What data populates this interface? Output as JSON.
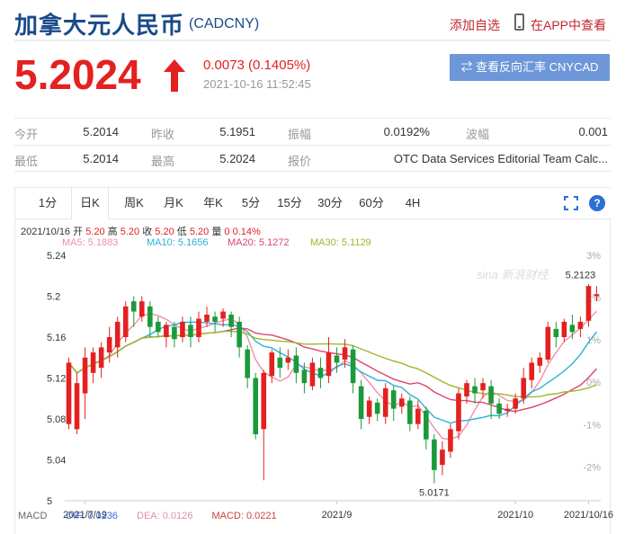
{
  "header": {
    "title": "加拿大元人民币",
    "code": "(CADCNY)",
    "add_favorite": "添加自选",
    "view_in_app": "在APP中查看"
  },
  "quote": {
    "price": "5.2024",
    "direction": "up",
    "change": "0.0073 (0.1405%)",
    "timestamp": "2021-10-16 11:52:45",
    "reverse_button": "⇄ 查看反向汇率 CNYCAD"
  },
  "stats": {
    "row1": [
      {
        "label": "今开",
        "value": "5.2014"
      },
      {
        "label": "昨收",
        "value": "5.1951"
      },
      {
        "label": "振幅",
        "value": "0.0192%"
      },
      {
        "label": "波幅",
        "value": "0.001"
      }
    ],
    "row2": [
      {
        "label": "最低",
        "value": "5.2014"
      },
      {
        "label": "最高",
        "value": "5.2024"
      },
      {
        "label": "报价",
        "value": "OTC Data Services Editorial Team Calc..."
      }
    ]
  },
  "tabs": [
    "1分",
    "日K",
    "周K",
    "月K",
    "年K",
    "5分",
    "15分",
    "30分",
    "60分",
    "4H"
  ],
  "active_tab": "日K",
  "ohlc_legend": {
    "date": "2021/10/16",
    "open_label": "开",
    "open": "5.20",
    "high_label": "高",
    "high": "5.20",
    "close_label": "收",
    "close": "5.20",
    "low_label": "低",
    "low": "5.20",
    "vol_label": "量",
    "vol": "0",
    "pct": "0.14%"
  },
  "ma_legend": [
    {
      "label": "MA5: 5.1883",
      "color": "#f08fa8"
    },
    {
      "label": "MA10: 5.1656",
      "color": "#2ab0d8"
    },
    {
      "label": "MA20: 5.1272",
      "color": "#e0436b"
    },
    {
      "label": "MA30: 5.1129",
      "color": "#9cb82a"
    }
  ],
  "macd": {
    "name": "MACD",
    "dif": "DIF: 0.0236",
    "dif_color": "#3b6fd6",
    "dea": "DEA: 0.0126",
    "dea_color": "#e08fa8",
    "macd": "MACD: 0.0221",
    "macd_color": "#d04040"
  },
  "watermark": "sina 新浪财经",
  "colors": {
    "up": "#e42020",
    "down": "#1a9a3a",
    "accent": "#1a4a8a"
  },
  "chart_data": {
    "type": "candlestick",
    "title": "",
    "ylim": [
      5.0,
      5.24
    ],
    "y_ticks": [
      "5.24",
      "5.2",
      "5.16",
      "5.12",
      "5.08",
      "5.04",
      "5"
    ],
    "pct_ticks": [
      "3%",
      "2%",
      "1%",
      "0%",
      "-1%",
      "-2%"
    ],
    "x_ticks": [
      {
        "label": "2021/7/19",
        "index": 2
      },
      {
        "label": "2021/9",
        "index": 33
      },
      {
        "label": "2021/10",
        "index": 55
      },
      {
        "label": "2021/10/16",
        "index": 64
      }
    ],
    "annotations": [
      {
        "text": "5.2123",
        "index": 63,
        "value": 5.2123
      },
      {
        "text": "5.0171",
        "index": 45,
        "value": 5.0171
      }
    ],
    "candles": [
      [
        5.075,
        5.135,
        5.07,
        5.14
      ],
      [
        5.07,
        5.115,
        5.065,
        5.125
      ],
      [
        5.105,
        5.14,
        5.08,
        5.15
      ],
      [
        5.125,
        5.145,
        5.115,
        5.15
      ],
      [
        5.13,
        5.15,
        5.12,
        5.155
      ],
      [
        5.145,
        5.16,
        5.135,
        5.17
      ],
      [
        5.15,
        5.175,
        5.14,
        5.18
      ],
      [
        5.16,
        5.19,
        5.155,
        5.195
      ],
      [
        5.195,
        5.185,
        5.17,
        5.2
      ],
      [
        5.18,
        5.195,
        5.175,
        5.2
      ],
      [
        5.19,
        5.17,
        5.16,
        5.195
      ],
      [
        5.175,
        5.165,
        5.16,
        5.18
      ],
      [
        5.16,
        5.172,
        5.15,
        5.175
      ],
      [
        5.17,
        5.158,
        5.15,
        5.175
      ],
      [
        5.16,
        5.175,
        5.155,
        5.18
      ],
      [
        5.172,
        5.16,
        5.15,
        5.18
      ],
      [
        5.16,
        5.178,
        5.155,
        5.185
      ],
      [
        5.175,
        5.182,
        5.17,
        5.19
      ],
      [
        5.18,
        5.175,
        5.165,
        5.185
      ],
      [
        5.178,
        5.185,
        5.17,
        5.188
      ],
      [
        5.182,
        5.17,
        5.16,
        5.185
      ],
      [
        5.175,
        5.15,
        5.14,
        5.18
      ],
      [
        5.148,
        5.12,
        5.11,
        5.152
      ],
      [
        5.12,
        5.065,
        5.06,
        5.125
      ],
      [
        5.07,
        5.125,
        5.02,
        5.128
      ],
      [
        5.122,
        5.145,
        5.115,
        5.148
      ],
      [
        5.14,
        5.13,
        5.12,
        5.15
      ],
      [
        5.135,
        5.14,
        5.128,
        5.148
      ],
      [
        5.142,
        5.125,
        5.115,
        5.15
      ],
      [
        5.128,
        5.115,
        5.105,
        5.135
      ],
      [
        5.112,
        5.135,
        5.108,
        5.14
      ],
      [
        5.13,
        5.12,
        5.11,
        5.14
      ],
      [
        5.122,
        5.145,
        5.115,
        5.16
      ],
      [
        5.142,
        5.135,
        5.125,
        5.15
      ],
      [
        5.138,
        5.15,
        5.13,
        5.158
      ],
      [
        5.148,
        5.115,
        5.105,
        5.152
      ],
      [
        5.112,
        5.08,
        5.07,
        5.118
      ],
      [
        5.082,
        5.098,
        5.075,
        5.102
      ],
      [
        5.096,
        5.085,
        5.078,
        5.1
      ],
      [
        5.082,
        5.11,
        5.075,
        5.115
      ],
      [
        5.108,
        5.09,
        5.078,
        5.112
      ],
      [
        5.092,
        5.1,
        5.085,
        5.105
      ],
      [
        5.098,
        5.075,
        5.068,
        5.102
      ],
      [
        5.075,
        5.09,
        5.07,
        5.098
      ],
      [
        5.088,
        5.06,
        5.05,
        5.092
      ],
      [
        5.06,
        5.03,
        5.017,
        5.065
      ],
      [
        5.035,
        5.05,
        5.025,
        5.058
      ],
      [
        5.048,
        5.07,
        5.042,
        5.075
      ],
      [
        5.068,
        5.105,
        5.06,
        5.11
      ],
      [
        5.102,
        5.115,
        5.095,
        5.118
      ],
      [
        5.112,
        5.105,
        5.095,
        5.12
      ],
      [
        5.108,
        5.115,
        5.1,
        5.12
      ],
      [
        5.112,
        5.095,
        5.08,
        5.118
      ],
      [
        5.095,
        5.085,
        5.08,
        5.1
      ],
      [
        5.088,
        5.09,
        5.082,
        5.095
      ],
      [
        5.09,
        5.1,
        5.085,
        5.105
      ],
      [
        5.1,
        5.12,
        5.095,
        5.13
      ],
      [
        5.118,
        5.135,
        5.11,
        5.14
      ],
      [
        5.132,
        5.14,
        5.125,
        5.145
      ],
      [
        5.138,
        5.17,
        5.135,
        5.175
      ],
      [
        5.168,
        5.16,
        5.15,
        5.175
      ],
      [
        5.16,
        5.175,
        5.155,
        5.178
      ],
      [
        5.172,
        5.165,
        5.158,
        5.182
      ],
      [
        5.168,
        5.175,
        5.16,
        5.18
      ],
      [
        5.176,
        5.21,
        5.17,
        5.212
      ],
      [
        5.2,
        5.202,
        5.195,
        5.21
      ]
    ]
  }
}
